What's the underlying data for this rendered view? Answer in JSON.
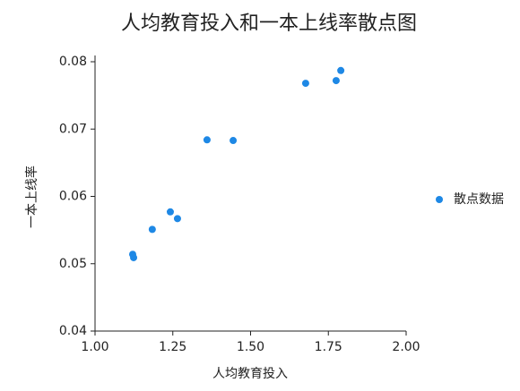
{
  "chart_data": {
    "type": "scatter",
    "title": "人均教育投入和一本上线率散点图",
    "xlabel": "人均教育投入",
    "ylabel": "一本上线率",
    "series": [
      {
        "name": "散点数据",
        "color": "#1e88e5",
        "x": [
          1.121,
          1.124,
          1.184,
          1.242,
          1.265,
          1.36,
          1.444,
          1.677,
          1.775,
          1.79
        ],
        "values": [
          0.0514,
          0.0509,
          0.0551,
          0.0577,
          0.0567,
          0.0684,
          0.0683,
          0.0768,
          0.0772,
          0.0787
        ]
      }
    ],
    "xlim": [
      1.0,
      2.0
    ],
    "xticks": [
      {
        "value": 1.0,
        "label": "1.00"
      },
      {
        "value": 1.25,
        "label": "1.25"
      },
      {
        "value": 1.5,
        "label": "1.50"
      },
      {
        "value": 1.75,
        "label": "1.75"
      },
      {
        "value": 2.0,
        "label": "2.00"
      }
    ],
    "ylim": [
      0.04,
      0.08
    ],
    "yticks": [
      0.04,
      0.05,
      0.06,
      0.07,
      0.08
    ],
    "grid": false,
    "legend": "right"
  }
}
